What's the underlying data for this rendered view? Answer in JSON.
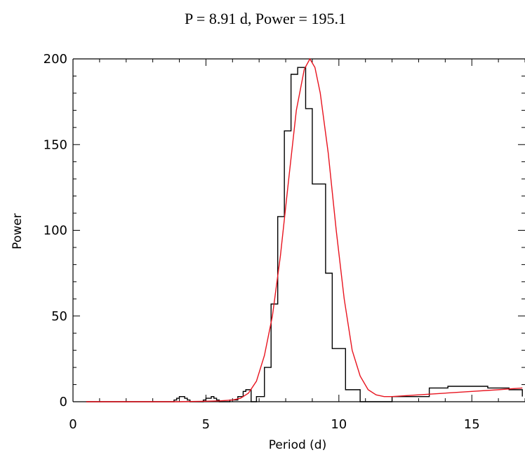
{
  "chart_data": {
    "type": "line",
    "title": "P = 8.91 d, Power = 195.1",
    "xlabel": "Period (d)",
    "ylabel": "Power",
    "xlim": [
      0,
      17
    ],
    "ylim": [
      0,
      200
    ],
    "x_ticks": [
      0,
      5,
      10,
      15
    ],
    "y_ticks": [
      0,
      50,
      100,
      150,
      200
    ],
    "x_tick_labels": [
      "0",
      "5",
      "10",
      "15"
    ],
    "y_tick_labels": [
      "0",
      "50",
      "100",
      "150",
      "200"
    ],
    "grid": false,
    "series": [
      {
        "type": "step",
        "color": "#000000",
        "x": [
          0.5,
          1.0,
          2.0,
          3.0,
          3.5,
          3.7,
          3.8,
          3.9,
          4.0,
          4.1,
          4.2,
          4.3,
          4.4,
          4.5,
          4.7,
          4.9,
          5.0,
          5.1,
          5.2,
          5.3,
          5.4,
          5.5,
          5.7,
          5.9,
          6.0,
          6.2,
          6.4,
          6.5,
          6.7,
          6.9,
          7.0,
          7.2,
          7.45,
          7.7,
          7.95,
          8.2,
          8.45,
          8.75,
          9.0,
          9.25,
          9.5,
          9.75,
          10.0,
          10.25,
          10.5,
          10.8,
          11.2,
          11.5,
          12.0,
          12.7,
          13.4,
          14.1,
          14.9,
          15.6,
          16.4,
          16.9
        ],
        "y": [
          0,
          0,
          0,
          0,
          0,
          0,
          1,
          2,
          3,
          3,
          2,
          1,
          0,
          0,
          0,
          1,
          2,
          2,
          3,
          2,
          1,
          0,
          0,
          1,
          1,
          3,
          6,
          7,
          0,
          3,
          3,
          20,
          57,
          108,
          158,
          191,
          195,
          171,
          127,
          127,
          75,
          31,
          31,
          7,
          7,
          0,
          0,
          0,
          3,
          3,
          8,
          9,
          9,
          8,
          7,
          3
        ]
      },
      {
        "type": "line",
        "color": "#e8141f",
        "x": [
          0.5,
          1,
          2,
          3,
          4,
          5,
          5.5,
          6.0,
          6.3,
          6.6,
          6.9,
          7.2,
          7.5,
          7.8,
          8.1,
          8.4,
          8.7,
          8.91,
          9.1,
          9.3,
          9.6,
          9.9,
          10.2,
          10.5,
          10.8,
          11.1,
          11.4,
          11.7,
          12.0,
          13.0,
          14.0,
          15.0,
          16.0,
          16.9
        ],
        "y": [
          0,
          0,
          0,
          0,
          0,
          0.3,
          0.5,
          1,
          2,
          5,
          12,
          27,
          50,
          85,
          128,
          170,
          194,
          200,
          195,
          180,
          145,
          100,
          60,
          30,
          15,
          7,
          4,
          3,
          3,
          4,
          5,
          6,
          7,
          8
        ]
      }
    ]
  }
}
